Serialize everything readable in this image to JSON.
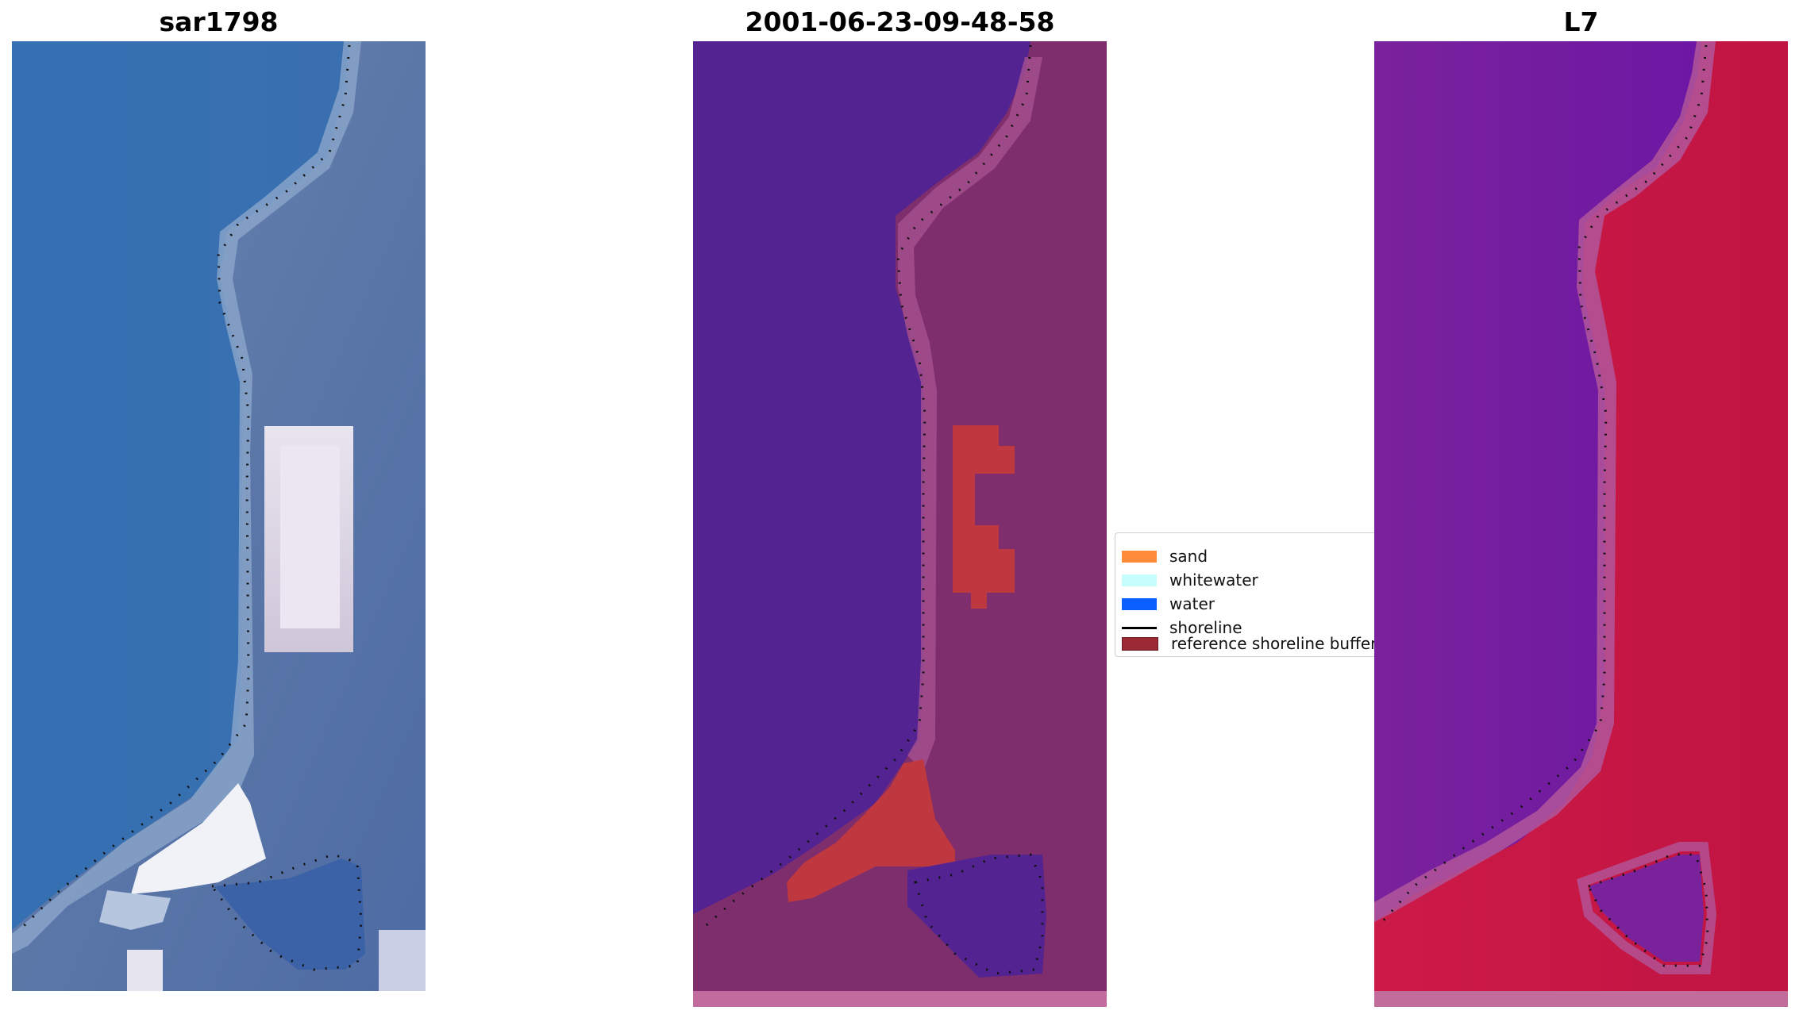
{
  "panels": [
    {
      "title": "sar1798"
    },
    {
      "title": "2001-06-23-09-48-58"
    },
    {
      "title": "L7"
    }
  ],
  "legend": {
    "items": [
      {
        "label": "sand",
        "color": "#ff8c3a"
      },
      {
        "label": "whitewater",
        "color": "#c8fdfd"
      },
      {
        "label": "water",
        "color": "#0a5fff"
      },
      {
        "label": "shoreline",
        "color": "#000000"
      },
      {
        "label": "reference shoreline buffer",
        "color": "#9b2a35"
      }
    ]
  },
  "colors": {
    "rgb_water": "#3a6fb0",
    "rgb_land": "#5978aa",
    "rgb_bright_sand": "#f2f2f7",
    "classified_water_purple": "#532391",
    "classified_land": "#7e2d6d",
    "classified_sand_red": "#c0383f",
    "classified_bottom_band": "#c26b9f",
    "ndwi_water": "#6f1ea0",
    "ndwi_land": "#c3123c",
    "ndwi_bottom_band": "#c16c9a"
  }
}
